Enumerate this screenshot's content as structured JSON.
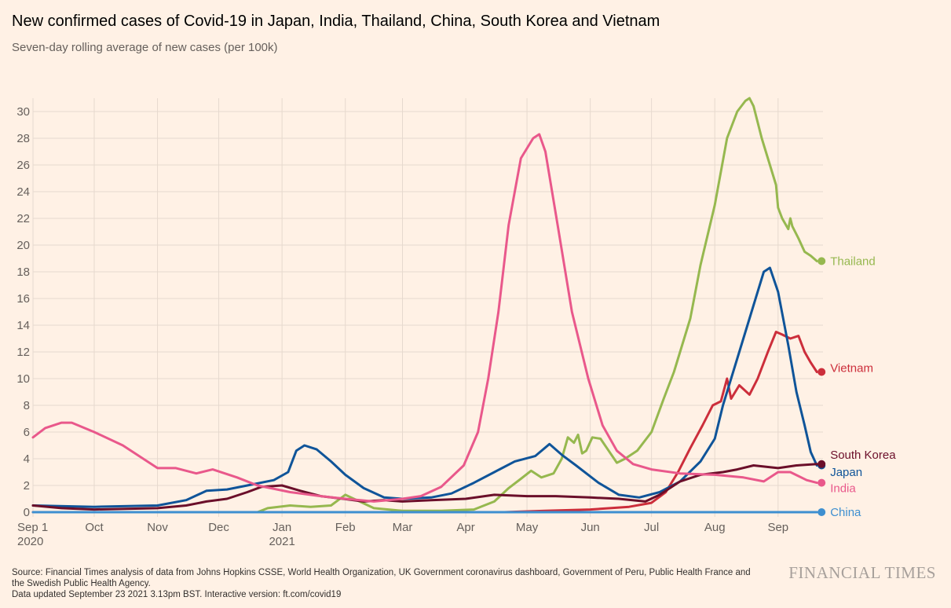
{
  "header": {
    "title": "New confirmed cases of Covid-19 in Japan, India, Thailand, China, South Korea and Vietnam",
    "subtitle": "Seven-day rolling average of new cases (per 100k)"
  },
  "footer": {
    "source_line1": "Source: Financial Times analysis of data from Johns Hopkins CSSE, World Health Organization, UK Government coronavirus dashboard, Government of Peru, Public Health France and",
    "source_line2": "the Swedish Public Health Agency.",
    "updated": "Data updated September 23 2021 3.13pm BST. Interactive version: ft.com/covid19",
    "brand": "FINANCIAL TIMES"
  },
  "chart_data": {
    "type": "line",
    "title": "New confirmed cases of Covid-19 in Japan, India, Thailand, China, South Korea and Vietnam",
    "subtitle": "Seven-day rolling average of new cases (per 100k)",
    "x_range": [
      "2020-09-01",
      "2021-09-23"
    ],
    "ylim": [
      0,
      31
    ],
    "y_ticks": [
      0,
      2,
      4,
      6,
      8,
      10,
      12,
      14,
      16,
      18,
      20,
      22,
      24,
      26,
      28,
      30
    ],
    "x_ticks": [
      {
        "date": "2020-09-01",
        "label": "Sep 1",
        "sublabel": "2020"
      },
      {
        "date": "2020-10-01",
        "label": "Oct",
        "sublabel": ""
      },
      {
        "date": "2020-11-01",
        "label": "Nov",
        "sublabel": ""
      },
      {
        "date": "2020-12-01",
        "label": "Dec",
        "sublabel": ""
      },
      {
        "date": "2021-01-01",
        "label": "Jan",
        "sublabel": "2021"
      },
      {
        "date": "2021-02-01",
        "label": "Feb",
        "sublabel": ""
      },
      {
        "date": "2021-03-01",
        "label": "Mar",
        "sublabel": ""
      },
      {
        "date": "2021-04-01",
        "label": "Apr",
        "sublabel": ""
      },
      {
        "date": "2021-05-01",
        "label": "May",
        "sublabel": ""
      },
      {
        "date": "2021-06-01",
        "label": "Jun",
        "sublabel": ""
      },
      {
        "date": "2021-07-01",
        "label": "Jul",
        "sublabel": ""
      },
      {
        "date": "2021-08-01",
        "label": "Aug",
        "sublabel": ""
      },
      {
        "date": "2021-09-01",
        "label": "Sep",
        "sublabel": ""
      }
    ],
    "grid": true,
    "legend": "inline labels at line ends",
    "series": [
      {
        "name": "Thailand",
        "color": "#96b84f",
        "label_y": 18.8,
        "points": [
          [
            "2020-12-20",
            0.0
          ],
          [
            "2020-12-25",
            0.3
          ],
          [
            "2021-01-05",
            0.5
          ],
          [
            "2021-01-15",
            0.4
          ],
          [
            "2021-01-25",
            0.5
          ],
          [
            "2021-02-01",
            1.3
          ],
          [
            "2021-02-08",
            0.8
          ],
          [
            "2021-02-15",
            0.3
          ],
          [
            "2021-03-01",
            0.1
          ],
          [
            "2021-03-20",
            0.1
          ],
          [
            "2021-04-05",
            0.2
          ],
          [
            "2021-04-15",
            0.8
          ],
          [
            "2021-04-22",
            1.8
          ],
          [
            "2021-04-28",
            2.5
          ],
          [
            "2021-05-03",
            3.1
          ],
          [
            "2021-05-08",
            2.6
          ],
          [
            "2021-05-14",
            2.9
          ],
          [
            "2021-05-18",
            4.0
          ],
          [
            "2021-05-21",
            5.6
          ],
          [
            "2021-05-24",
            5.2
          ],
          [
            "2021-05-26",
            5.8
          ],
          [
            "2021-05-28",
            4.4
          ],
          [
            "2021-05-30",
            4.6
          ],
          [
            "2021-06-02",
            5.6
          ],
          [
            "2021-06-06",
            5.5
          ],
          [
            "2021-06-10",
            4.6
          ],
          [
            "2021-06-14",
            3.7
          ],
          [
            "2021-06-18",
            4.0
          ],
          [
            "2021-06-24",
            4.6
          ],
          [
            "2021-07-01",
            6.0
          ],
          [
            "2021-07-07",
            8.5
          ],
          [
            "2021-07-12",
            10.5
          ],
          [
            "2021-07-17",
            13.0
          ],
          [
            "2021-07-20",
            14.5
          ],
          [
            "2021-07-25",
            18.5
          ],
          [
            "2021-08-01",
            23.0
          ],
          [
            "2021-08-07",
            28.0
          ],
          [
            "2021-08-12",
            30.0
          ],
          [
            "2021-08-16",
            30.8
          ],
          [
            "2021-08-18",
            31.0
          ],
          [
            "2021-08-20",
            30.4
          ],
          [
            "2021-08-24",
            28.0
          ],
          [
            "2021-08-28",
            26.0
          ],
          [
            "2021-08-31",
            24.5
          ],
          [
            "2021-09-01",
            22.8
          ],
          [
            "2021-09-03",
            22.0
          ],
          [
            "2021-09-06",
            21.2
          ],
          [
            "2021-09-07",
            22.0
          ],
          [
            "2021-09-08",
            21.4
          ],
          [
            "2021-09-11",
            20.5
          ],
          [
            "2021-09-14",
            19.5
          ],
          [
            "2021-09-17",
            19.2
          ],
          [
            "2021-09-20",
            18.8
          ]
        ]
      },
      {
        "name": "Vietnam",
        "color": "#cc2e3b",
        "label_y": 10.8,
        "points": [
          [
            "2020-09-01",
            0.0
          ],
          [
            "2021-04-20",
            0.0
          ],
          [
            "2021-05-10",
            0.1
          ],
          [
            "2021-06-01",
            0.2
          ],
          [
            "2021-06-20",
            0.4
          ],
          [
            "2021-07-01",
            0.7
          ],
          [
            "2021-07-08",
            1.5
          ],
          [
            "2021-07-14",
            3.0
          ],
          [
            "2021-07-20",
            4.8
          ],
          [
            "2021-07-26",
            6.5
          ],
          [
            "2021-07-31",
            8.0
          ],
          [
            "2021-08-04",
            8.3
          ],
          [
            "2021-08-07",
            10.0
          ],
          [
            "2021-08-09",
            8.5
          ],
          [
            "2021-08-13",
            9.5
          ],
          [
            "2021-08-18",
            8.8
          ],
          [
            "2021-08-22",
            10.0
          ],
          [
            "2021-08-27",
            12.0
          ],
          [
            "2021-08-31",
            13.5
          ],
          [
            "2021-09-03",
            13.3
          ],
          [
            "2021-09-07",
            13.0
          ],
          [
            "2021-09-11",
            13.2
          ],
          [
            "2021-09-14",
            12.0
          ],
          [
            "2021-09-17",
            11.2
          ],
          [
            "2021-09-20",
            10.5
          ]
        ]
      },
      {
        "name": "Japan",
        "color": "#0f5499",
        "label_y": 3.0,
        "points": [
          [
            "2020-09-01",
            0.5
          ],
          [
            "2020-10-01",
            0.4
          ],
          [
            "2020-11-01",
            0.5
          ],
          [
            "2020-11-15",
            0.9
          ],
          [
            "2020-11-25",
            1.6
          ],
          [
            "2020-12-05",
            1.7
          ],
          [
            "2020-12-15",
            2.0
          ],
          [
            "2020-12-28",
            2.4
          ],
          [
            "2021-01-04",
            3.0
          ],
          [
            "2021-01-08",
            4.6
          ],
          [
            "2021-01-12",
            5.0
          ],
          [
            "2021-01-18",
            4.7
          ],
          [
            "2021-01-25",
            3.8
          ],
          [
            "2021-02-01",
            2.8
          ],
          [
            "2021-02-10",
            1.8
          ],
          [
            "2021-02-20",
            1.1
          ],
          [
            "2021-03-01",
            1.0
          ],
          [
            "2021-03-15",
            1.1
          ],
          [
            "2021-03-25",
            1.4
          ],
          [
            "2021-04-05",
            2.2
          ],
          [
            "2021-04-15",
            3.0
          ],
          [
            "2021-04-25",
            3.8
          ],
          [
            "2021-05-05",
            4.2
          ],
          [
            "2021-05-12",
            5.1
          ],
          [
            "2021-05-18",
            4.3
          ],
          [
            "2021-05-25",
            3.5
          ],
          [
            "2021-06-05",
            2.2
          ],
          [
            "2021-06-15",
            1.3
          ],
          [
            "2021-06-25",
            1.1
          ],
          [
            "2021-07-05",
            1.5
          ],
          [
            "2021-07-15",
            2.3
          ],
          [
            "2021-07-25",
            3.8
          ],
          [
            "2021-08-01",
            5.5
          ],
          [
            "2021-08-05",
            8.0
          ],
          [
            "2021-08-10",
            10.5
          ],
          [
            "2021-08-15",
            13.0
          ],
          [
            "2021-08-20",
            15.5
          ],
          [
            "2021-08-25",
            18.0
          ],
          [
            "2021-08-28",
            18.3
          ],
          [
            "2021-09-01",
            16.5
          ],
          [
            "2021-09-06",
            12.5
          ],
          [
            "2021-09-10",
            9.0
          ],
          [
            "2021-09-14",
            6.5
          ],
          [
            "2021-09-17",
            4.5
          ],
          [
            "2021-09-20",
            3.5
          ]
        ]
      },
      {
        "name": "South Korea",
        "color": "#6b0f2a",
        "label_y": 4.3,
        "points": [
          [
            "2020-09-01",
            0.5
          ],
          [
            "2020-09-15",
            0.3
          ],
          [
            "2020-10-01",
            0.2
          ],
          [
            "2020-11-01",
            0.3
          ],
          [
            "2020-11-15",
            0.5
          ],
          [
            "2020-11-25",
            0.8
          ],
          [
            "2020-12-05",
            1.0
          ],
          [
            "2020-12-15",
            1.5
          ],
          [
            "2020-12-22",
            1.9
          ],
          [
            "2021-01-01",
            2.0
          ],
          [
            "2021-01-10",
            1.6
          ],
          [
            "2021-01-20",
            1.2
          ],
          [
            "2021-01-31",
            1.0
          ],
          [
            "2021-02-10",
            0.8
          ],
          [
            "2021-02-20",
            0.9
          ],
          [
            "2021-03-01",
            0.8
          ],
          [
            "2021-03-15",
            0.9
          ],
          [
            "2021-04-01",
            1.0
          ],
          [
            "2021-04-15",
            1.3
          ],
          [
            "2021-05-01",
            1.2
          ],
          [
            "2021-05-15",
            1.2
          ],
          [
            "2021-06-01",
            1.1
          ],
          [
            "2021-06-15",
            1.0
          ],
          [
            "2021-06-28",
            0.8
          ],
          [
            "2021-07-05",
            1.3
          ],
          [
            "2021-07-15",
            2.3
          ],
          [
            "2021-07-25",
            2.8
          ],
          [
            "2021-08-05",
            3.0
          ],
          [
            "2021-08-12",
            3.2
          ],
          [
            "2021-08-20",
            3.5
          ],
          [
            "2021-09-01",
            3.3
          ],
          [
            "2021-09-10",
            3.5
          ],
          [
            "2021-09-20",
            3.6
          ]
        ]
      },
      {
        "name": "India",
        "color": "#e9588b",
        "label_y": 1.8,
        "points": [
          [
            "2020-09-01",
            5.6
          ],
          [
            "2020-09-07",
            6.3
          ],
          [
            "2020-09-15",
            6.7
          ],
          [
            "2020-09-20",
            6.7
          ],
          [
            "2020-10-01",
            6.0
          ],
          [
            "2020-10-15",
            5.0
          ],
          [
            "2020-10-25",
            4.0
          ],
          [
            "2020-11-01",
            3.3
          ],
          [
            "2020-11-10",
            3.3
          ],
          [
            "2020-11-20",
            2.9
          ],
          [
            "2020-11-28",
            3.2
          ],
          [
            "2020-12-10",
            2.6
          ],
          [
            "2020-12-20",
            2.0
          ],
          [
            "2021-01-05",
            1.5
          ],
          [
            "2021-01-20",
            1.2
          ],
          [
            "2021-02-01",
            1.0
          ],
          [
            "2021-02-15",
            0.8
          ],
          [
            "2021-03-01",
            1.0
          ],
          [
            "2021-03-10",
            1.2
          ],
          [
            "2021-03-20",
            1.9
          ],
          [
            "2021-03-31",
            3.5
          ],
          [
            "2021-04-07",
            6.0
          ],
          [
            "2021-04-12",
            10.0
          ],
          [
            "2021-04-17",
            15.0
          ],
          [
            "2021-04-22",
            21.5
          ],
          [
            "2021-04-28",
            26.5
          ],
          [
            "2021-05-04",
            28.0
          ],
          [
            "2021-05-07",
            28.3
          ],
          [
            "2021-05-10",
            27.0
          ],
          [
            "2021-05-16",
            21.5
          ],
          [
            "2021-05-23",
            15.0
          ],
          [
            "2021-05-31",
            10.0
          ],
          [
            "2021-06-07",
            6.5
          ],
          [
            "2021-06-14",
            4.6
          ],
          [
            "2021-06-22",
            3.6
          ],
          [
            "2021-07-01",
            3.2
          ],
          [
            "2021-07-15",
            2.9
          ],
          [
            "2021-08-01",
            2.8
          ],
          [
            "2021-08-15",
            2.6
          ],
          [
            "2021-08-25",
            2.3
          ],
          [
            "2021-09-01",
            3.0
          ],
          [
            "2021-09-07",
            3.0
          ],
          [
            "2021-09-15",
            2.4
          ],
          [
            "2021-09-20",
            2.2
          ]
        ]
      },
      {
        "name": "China",
        "color": "#3e8fd0",
        "label_y": 0.0,
        "points": [
          [
            "2020-09-01",
            0.0
          ],
          [
            "2021-09-20",
            0.0
          ]
        ]
      }
    ]
  }
}
